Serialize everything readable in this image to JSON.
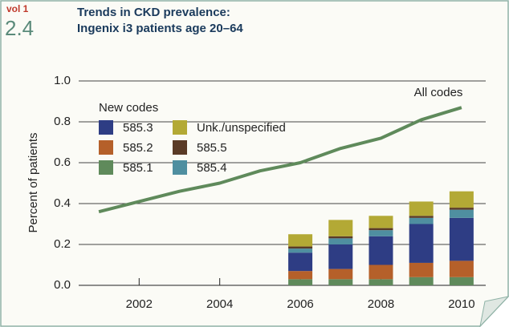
{
  "chart_data": {
    "type": "bar",
    "label_top": "vol 1",
    "figure": "2.4",
    "title": "Trends in CKD prevalence:",
    "subtitle": "Ingenix i3 patients age 20–64",
    "ylabel": "Percent of patients",
    "legend_title": "New codes",
    "annotation": "All codes",
    "stacked": true,
    "grid": true,
    "x": [
      2001,
      2002,
      2003,
      2004,
      2005,
      2006,
      2007,
      2008,
      2009,
      2010
    ],
    "xlim": [
      2000.5,
      2010.6
    ],
    "xticks": [
      2002,
      2004,
      2006,
      2008,
      2010
    ],
    "ylim": [
      0,
      1
    ],
    "yticks": [
      {
        "value": 0,
        "label": "0.0"
      },
      0.2,
      0.4,
      0.6,
      0.8,
      {
        "value": 1,
        "label": "1.0"
      }
    ],
    "series": [
      {
        "name": "585.1",
        "color": "#5f8a5b",
        "values": [
          null,
          null,
          null,
          null,
          null,
          0.03,
          0.03,
          0.03,
          0.04,
          0.04
        ]
      },
      {
        "name": "585.2",
        "color": "#b5602a",
        "values": [
          null,
          null,
          null,
          null,
          null,
          0.04,
          0.05,
          0.07,
          0.07,
          0.08
        ]
      },
      {
        "name": "585.3",
        "color": "#2e3d84",
        "values": [
          null,
          null,
          null,
          null,
          null,
          0.09,
          0.12,
          0.14,
          0.19,
          0.21
        ]
      },
      {
        "name": "585.4",
        "color": "#4f8fa0",
        "values": [
          null,
          null,
          null,
          null,
          null,
          0.02,
          0.03,
          0.03,
          0.03,
          0.04
        ]
      },
      {
        "name": "585.5",
        "color": "#5a3b27",
        "values": [
          null,
          null,
          null,
          null,
          null,
          0.01,
          0.01,
          0.01,
          0.01,
          0.01
        ]
      },
      {
        "name": "Unk./unspecified",
        "color": "#b3a935",
        "values": [
          null,
          null,
          null,
          null,
          null,
          0.06,
          0.08,
          0.06,
          0.07,
          0.08
        ]
      }
    ],
    "line": {
      "type": "line",
      "color": "#5f8a5b",
      "values": [
        0.36,
        0.41,
        0.46,
        0.5,
        0.56,
        0.6,
        0.67,
        0.72,
        0.81,
        0.87
      ]
    }
  }
}
